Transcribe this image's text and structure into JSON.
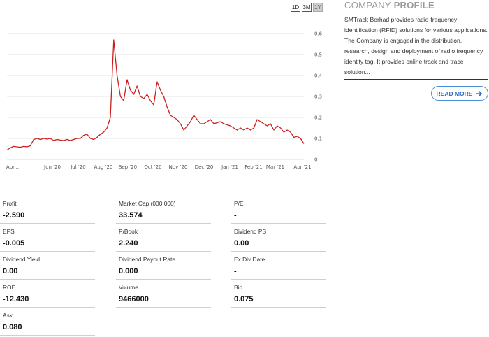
{
  "range_buttons": [
    "1D",
    "3M",
    "1Y"
  ],
  "range_selected": "1Y",
  "chart_data": {
    "type": "line",
    "ylim": [
      0,
      0.6
    ],
    "y_ticks": [
      "0.6",
      "0.5",
      "0.4",
      "0.3",
      "0.2",
      "0.1",
      "0"
    ],
    "x_ticks": [
      "Apr...",
      "Jun '20",
      "Jul '20",
      "Aug '20",
      "Sep '20",
      "Oct '20",
      "Nov '20",
      "Dec '20",
      "Jan '21",
      "Feb '21",
      "Mar '21",
      "Apr '21"
    ],
    "grid": true,
    "line_color": "#cc1f1f",
    "points": [
      [
        0,
        0.045
      ],
      [
        1,
        0.055
      ],
      [
        2,
        0.062
      ],
      [
        3,
        0.06
      ],
      [
        4,
        0.058
      ],
      [
        5,
        0.062
      ],
      [
        6,
        0.06
      ],
      [
        7,
        0.065
      ],
      [
        8,
        0.095
      ],
      [
        9,
        0.1
      ],
      [
        10,
        0.095
      ],
      [
        11,
        0.1
      ],
      [
        12,
        0.097
      ],
      [
        13,
        0.1
      ],
      [
        14,
        0.09
      ],
      [
        15,
        0.095
      ],
      [
        16,
        0.092
      ],
      [
        17,
        0.09
      ],
      [
        18,
        0.095
      ],
      [
        19,
        0.09
      ],
      [
        20,
        0.095
      ],
      [
        21,
        0.1
      ],
      [
        22,
        0.1
      ],
      [
        23,
        0.115
      ],
      [
        24,
        0.12
      ],
      [
        25,
        0.1
      ],
      [
        26,
        0.095
      ],
      [
        27,
        0.105
      ],
      [
        28,
        0.12
      ],
      [
        29,
        0.13
      ],
      [
        30,
        0.15
      ],
      [
        31,
        0.2
      ],
      [
        32,
        0.57
      ],
      [
        33,
        0.4
      ],
      [
        34,
        0.3
      ],
      [
        35,
        0.28
      ],
      [
        36,
        0.38
      ],
      [
        37,
        0.33
      ],
      [
        38,
        0.31
      ],
      [
        39,
        0.35
      ],
      [
        40,
        0.3
      ],
      [
        41,
        0.29
      ],
      [
        42,
        0.31
      ],
      [
        43,
        0.28
      ],
      [
        44,
        0.26
      ],
      [
        45,
        0.37
      ],
      [
        46,
        0.33
      ],
      [
        47,
        0.3
      ],
      [
        48,
        0.25
      ],
      [
        49,
        0.21
      ],
      [
        50,
        0.2
      ],
      [
        51,
        0.19
      ],
      [
        52,
        0.17
      ],
      [
        53,
        0.14
      ],
      [
        54,
        0.16
      ],
      [
        55,
        0.18
      ],
      [
        56,
        0.21
      ],
      [
        57,
        0.19
      ],
      [
        58,
        0.17
      ],
      [
        59,
        0.17
      ],
      [
        60,
        0.18
      ],
      [
        61,
        0.19
      ],
      [
        62,
        0.17
      ],
      [
        63,
        0.175
      ],
      [
        64,
        0.18
      ],
      [
        65,
        0.17
      ],
      [
        66,
        0.165
      ],
      [
        67,
        0.16
      ],
      [
        68,
        0.15
      ],
      [
        69,
        0.14
      ],
      [
        70,
        0.15
      ],
      [
        71,
        0.14
      ],
      [
        72,
        0.15
      ],
      [
        73,
        0.14
      ],
      [
        74,
        0.15
      ],
      [
        75,
        0.19
      ],
      [
        76,
        0.18
      ],
      [
        77,
        0.17
      ],
      [
        78,
        0.16
      ],
      [
        79,
        0.17
      ],
      [
        80,
        0.14
      ],
      [
        81,
        0.16
      ],
      [
        82,
        0.15
      ],
      [
        83,
        0.13
      ],
      [
        84,
        0.14
      ],
      [
        85,
        0.13
      ],
      [
        86,
        0.105
      ],
      [
        87,
        0.11
      ],
      [
        88,
        0.1
      ],
      [
        89,
        0.075
      ]
    ]
  },
  "profile": {
    "title_normal": "COMPANY",
    "title_bold": "PROFILE",
    "text": "SMTrack Berhad provides radio-frequency identification (RFID) solutions for various applications. The Company is engaged in the distribution, research, design and deployment of radio frequency identity tag. It provides online track and trace solution...",
    "read_more": "READ MORE",
    "read_more_icon": "arrow-right-icon"
  },
  "stats": [
    {
      "label": "Profit",
      "value": "-2.590"
    },
    {
      "label": "Market Cap    (000,000)",
      "value": "33.574"
    },
    {
      "label": "P/E",
      "value": "-"
    },
    {
      "label": "EPS",
      "value": "-0.005"
    },
    {
      "label": "P/Book",
      "value": "2.240"
    },
    {
      "label": "Dividend PS",
      "value": "0.00"
    },
    {
      "label": "Dividend Yield",
      "value": "0.00"
    },
    {
      "label": "Dividend Payout Rate",
      "value": "0.000"
    },
    {
      "label": "Ex Div Date",
      "value": "-"
    },
    {
      "label": "ROE",
      "value": "-12.430"
    },
    {
      "label": "Volume",
      "value": "9466000"
    },
    {
      "label": "Bid",
      "value": "0.075"
    },
    {
      "label": "Ask",
      "value": "0.080"
    }
  ]
}
